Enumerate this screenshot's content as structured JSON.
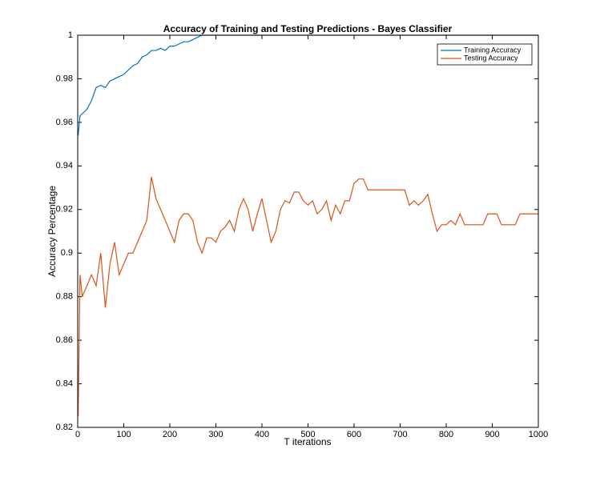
{
  "chart_data": {
    "type": "line",
    "title": "Accuracy of Training and Testing Predictions - Bayes Classifier",
    "xlabel": "T iterations",
    "ylabel": "Accuracy Percentage",
    "x": [
      1,
      5,
      10,
      20,
      30,
      40,
      50,
      60,
      70,
      80,
      90,
      100,
      110,
      120,
      130,
      140,
      150,
      160,
      170,
      180,
      190,
      200,
      210,
      220,
      230,
      240,
      250,
      260,
      270,
      280,
      290,
      300,
      310,
      320,
      330,
      340,
      350,
      360,
      370,
      380,
      390,
      400,
      410,
      420,
      430,
      440,
      450,
      460,
      470,
      480,
      490,
      500,
      510,
      520,
      530,
      540,
      550,
      560,
      570,
      580,
      590,
      600,
      610,
      620,
      630,
      640,
      650,
      660,
      670,
      680,
      690,
      700,
      710,
      720,
      730,
      740,
      750,
      760,
      770,
      780,
      790,
      800,
      810,
      820,
      830,
      840,
      850,
      860,
      870,
      880,
      890,
      900,
      910,
      920,
      930,
      940,
      950,
      960,
      970,
      980,
      990,
      1000
    ],
    "series": [
      {
        "name": "Training Accuracy",
        "color": "#0072bd",
        "values": [
          0.954,
          0.963,
          0.964,
          0.966,
          0.97,
          0.976,
          0.977,
          0.976,
          0.979,
          0.98,
          0.981,
          0.982,
          0.984,
          0.986,
          0.987,
          0.99,
          0.991,
          0.993,
          0.993,
          0.994,
          0.993,
          0.995,
          0.995,
          0.996,
          0.997,
          0.997,
          0.998,
          0.999,
          1,
          1,
          1,
          1,
          1,
          1,
          1,
          1,
          1,
          1,
          1,
          1,
          1,
          1,
          1,
          1,
          1,
          1,
          1,
          1,
          1,
          1,
          1,
          1,
          1,
          1,
          1,
          1,
          1,
          1,
          1,
          1,
          1,
          1,
          1,
          1,
          1,
          1,
          1,
          1,
          1,
          1,
          1,
          1,
          1,
          1,
          1,
          1,
          1,
          1,
          1,
          1,
          1,
          1,
          1,
          1,
          1,
          1,
          1,
          1,
          1,
          1,
          1,
          1,
          1,
          1,
          1,
          1,
          1,
          1,
          1,
          1,
          1,
          1
        ]
      },
      {
        "name": "Testing Accuracy",
        "color": "#d95319",
        "values": [
          0.825,
          0.89,
          0.88,
          0.885,
          0.89,
          0.885,
          0.9,
          0.875,
          0.895,
          0.905,
          0.89,
          0.895,
          0.9,
          0.9,
          0.905,
          0.91,
          0.915,
          0.935,
          0.925,
          0.92,
          0.915,
          0.91,
          0.905,
          0.915,
          0.918,
          0.918,
          0.915,
          0.905,
          0.9,
          0.907,
          0.907,
          0.905,
          0.91,
          0.912,
          0.915,
          0.91,
          0.92,
          0.925,
          0.92,
          0.91,
          0.918,
          0.925,
          0.915,
          0.905,
          0.91,
          0.92,
          0.924,
          0.923,
          0.928,
          0.928,
          0.924,
          0.922,
          0.924,
          0.918,
          0.92,
          0.924,
          0.915,
          0.922,
          0.918,
          0.924,
          0.924,
          0.932,
          0.934,
          0.934,
          0.929,
          0.929,
          0.929,
          0.929,
          0.929,
          0.929,
          0.929,
          0.929,
          0.929,
          0.922,
          0.924,
          0.922,
          0.924,
          0.927,
          0.918,
          0.91,
          0.913,
          0.913,
          0.915,
          0.913,
          0.918,
          0.913,
          0.913,
          0.913,
          0.913,
          0.913,
          0.918,
          0.918,
          0.918,
          0.913,
          0.913,
          0.913,
          0.913,
          0.918,
          0.918,
          0.918,
          0.918,
          0.918
        ]
      }
    ],
    "xlim": [
      0,
      1000
    ],
    "xticks": [
      0,
      100,
      200,
      300,
      400,
      500,
      600,
      700,
      800,
      900,
      1000
    ],
    "ylim": [
      0.82,
      1
    ],
    "yticks": [
      0.82,
      0.84,
      0.86,
      0.88,
      0.9,
      0.92,
      0.94,
      0.96,
      0.98,
      1
    ],
    "legend": "northeast"
  }
}
